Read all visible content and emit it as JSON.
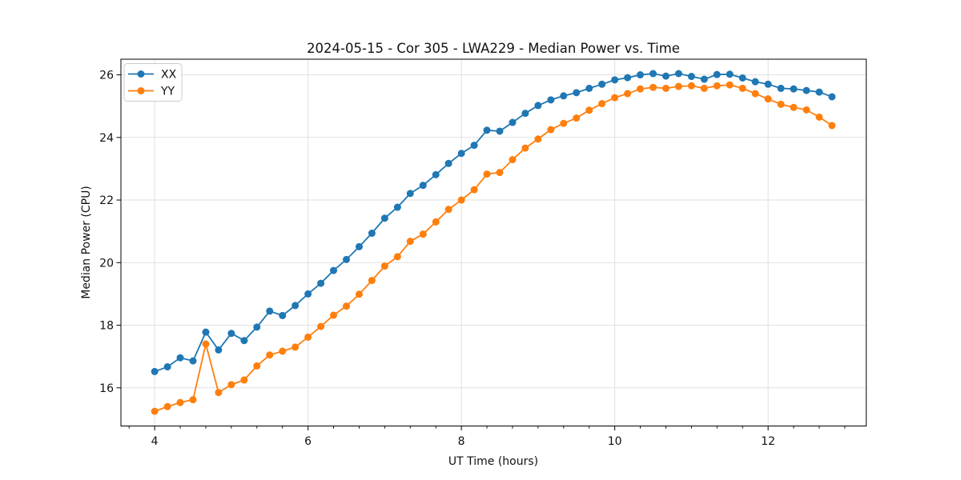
{
  "chart_data": {
    "type": "line",
    "title": "2024-05-15 - Cor 305 - LWA229 - Median Power vs. Time",
    "xlabel": "UT Time (hours)",
    "ylabel": "Median Power (CPU)",
    "xlim": [
      3.56,
      13.28
    ],
    "ylim": [
      14.78,
      26.5
    ],
    "x_major_ticks": [
      4,
      6,
      8,
      10,
      12
    ],
    "x_minor_tick_step_hours": 0.3333,
    "y_major_ticks": [
      16,
      18,
      20,
      22,
      24,
      26
    ],
    "grid": true,
    "grid_color": "#e0e0e0",
    "legend_position": "upper-left",
    "x": [
      4.0,
      4.167,
      4.333,
      4.5,
      4.667,
      4.833,
      5.0,
      5.167,
      5.333,
      5.5,
      5.667,
      5.833,
      6.0,
      6.167,
      6.333,
      6.5,
      6.667,
      6.833,
      7.0,
      7.167,
      7.333,
      7.5,
      7.667,
      7.833,
      8.0,
      8.167,
      8.333,
      8.5,
      8.667,
      8.833,
      9.0,
      9.167,
      9.333,
      9.5,
      9.667,
      9.833,
      10.0,
      10.167,
      10.333,
      10.5,
      10.667,
      10.833,
      11.0,
      11.167,
      11.333,
      11.5,
      11.667,
      11.833,
      12.0,
      12.167,
      12.333,
      12.5,
      12.667,
      12.833
    ],
    "series": [
      {
        "name": "XX",
        "color": "#1f77b4",
        "values": [
          16.52,
          16.67,
          16.96,
          16.86,
          17.78,
          17.21,
          17.74,
          17.51,
          17.94,
          18.45,
          18.31,
          18.63,
          19.0,
          19.34,
          19.75,
          20.1,
          20.51,
          20.94,
          21.42,
          21.77,
          22.21,
          22.47,
          22.81,
          23.17,
          23.49,
          23.75,
          24.23,
          24.2,
          24.48,
          24.77,
          25.02,
          25.2,
          25.33,
          25.43,
          25.57,
          25.7,
          25.84,
          25.91,
          26.0,
          26.04,
          25.96,
          26.04,
          25.95,
          25.86,
          26.01,
          26.02,
          25.9,
          25.78,
          25.7,
          25.57,
          25.55,
          25.5,
          25.45,
          25.3
        ]
      },
      {
        "name": "YY",
        "color": "#ff7f0e",
        "values": [
          15.25,
          15.4,
          15.53,
          15.62,
          17.4,
          15.85,
          16.1,
          16.25,
          16.7,
          17.05,
          17.17,
          17.3,
          17.62,
          17.96,
          18.32,
          18.61,
          18.99,
          19.43,
          19.89,
          20.19,
          20.68,
          20.91,
          21.3,
          21.7,
          22.0,
          22.33,
          22.83,
          22.88,
          23.29,
          23.66,
          23.95,
          24.25,
          24.45,
          24.62,
          24.87,
          25.08,
          25.27,
          25.4,
          25.55,
          25.6,
          25.57,
          25.63,
          25.65,
          25.57,
          25.65,
          25.68,
          25.57,
          25.4,
          25.23,
          25.06,
          24.96,
          24.88,
          24.65,
          24.38
        ]
      }
    ]
  }
}
